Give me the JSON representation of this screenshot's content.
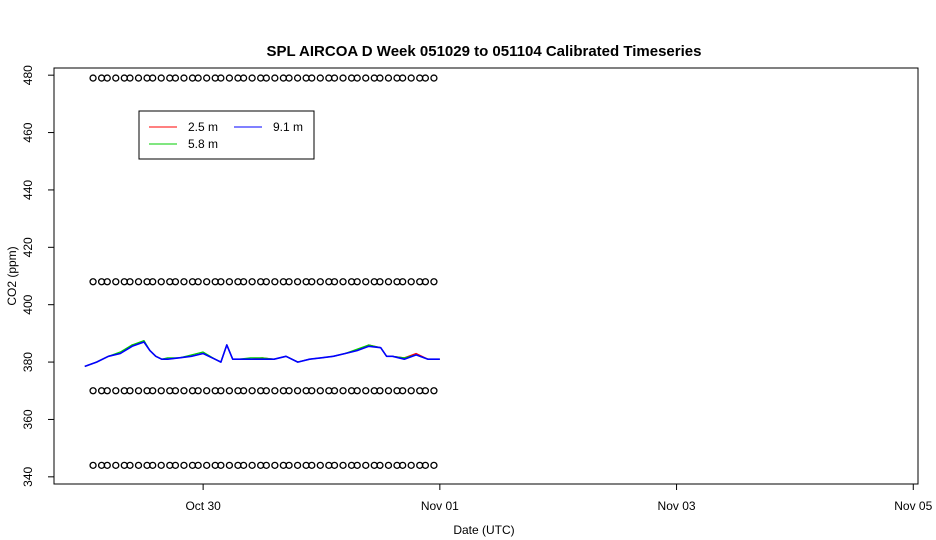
{
  "chart_data": {
    "type": "line",
    "title": "SPL AIRCOA D  Week 051029 to 051104  Calibrated Timeseries",
    "xlabel": "Date (UTC)",
    "ylabel": "CO2 (ppm)",
    "x_ticks": [
      {
        "label": "Oct 30",
        "day": 1
      },
      {
        "label": "Nov 01",
        "day": 3
      },
      {
        "label": "Nov 03",
        "day": 5
      },
      {
        "label": "Nov 05",
        "day": 7
      }
    ],
    "y_ticks": [
      340,
      360,
      380,
      400,
      420,
      440,
      460,
      480
    ],
    "xlim_days": [
      -0.26,
      7.04
    ],
    "ylim": [
      337.5,
      482.5
    ],
    "legend": {
      "placement": "top-left",
      "entries": [
        {
          "label": "2.5 m",
          "color": "#ff0000"
        },
        {
          "label": "5.8 m",
          "color": "#00cd00"
        },
        {
          "label": "9.1 m",
          "color": "#0000ff"
        }
      ]
    },
    "series": [
      {
        "name": "2.5 m",
        "color": "#ff0000",
        "x": [
          0.0,
          0.1,
          0.2,
          0.3,
          0.4,
          0.5,
          0.55,
          0.6,
          0.65,
          0.7,
          0.8,
          0.9,
          1.0,
          1.1,
          1.15,
          1.2,
          1.25,
          1.3,
          1.4,
          1.5,
          1.6,
          1.7,
          1.8,
          1.9,
          2.0,
          2.1,
          2.2,
          2.3,
          2.4,
          2.5,
          2.55,
          2.6,
          2.7,
          2.8,
          2.9,
          3.0
        ],
        "y": [
          378.5,
          380,
          382,
          383,
          386,
          387,
          384,
          382,
          381,
          381,
          381.5,
          382,
          383,
          381,
          380,
          386,
          381,
          381,
          381,
          381.5,
          381,
          382,
          380,
          381,
          381.5,
          382,
          383,
          384,
          386,
          385,
          382,
          382,
          381.5,
          383,
          381,
          381
        ]
      },
      {
        "name": "5.8 m",
        "color": "#00cd00",
        "x": [
          0.0,
          0.1,
          0.2,
          0.3,
          0.4,
          0.5,
          0.55,
          0.6,
          0.65,
          0.7,
          0.8,
          0.9,
          1.0,
          1.1,
          1.15,
          1.2,
          1.25,
          1.3,
          1.4,
          1.5,
          1.6,
          1.7,
          1.8,
          1.9,
          2.0,
          2.1,
          2.2,
          2.3,
          2.4,
          2.5,
          2.55,
          2.6,
          2.7,
          2.8,
          2.9,
          3.0
        ],
        "y": [
          378.5,
          380,
          382,
          383.5,
          386,
          387.5,
          384,
          382,
          381,
          381.5,
          381.5,
          382.5,
          383.5,
          381,
          380,
          386,
          381,
          381,
          381.5,
          381.5,
          381,
          382,
          380,
          381,
          381.5,
          382,
          383,
          384.5,
          386,
          385,
          382,
          382,
          381.5,
          382.5,
          381,
          381
        ]
      },
      {
        "name": "9.1 m",
        "color": "#0000ff",
        "x": [
          0.0,
          0.1,
          0.2,
          0.3,
          0.4,
          0.5,
          0.55,
          0.6,
          0.65,
          0.7,
          0.8,
          0.9,
          1.0,
          1.1,
          1.15,
          1.2,
          1.25,
          1.3,
          1.4,
          1.5,
          1.6,
          1.7,
          1.8,
          1.9,
          2.0,
          2.1,
          2.2,
          2.3,
          2.4,
          2.5,
          2.55,
          2.6,
          2.7,
          2.8,
          2.9,
          3.0
        ],
        "y": [
          378.5,
          380,
          382,
          383,
          385.5,
          387,
          384,
          382,
          381,
          381,
          381.5,
          382,
          383,
          381,
          380,
          386,
          381,
          381,
          381,
          381,
          381,
          382,
          380,
          381,
          381.5,
          382,
          383,
          384,
          385.5,
          385,
          382,
          382,
          381,
          382.5,
          381,
          381
        ]
      }
    ],
    "marker_rows_ppm": [
      344,
      370,
      408,
      479
    ]
  }
}
